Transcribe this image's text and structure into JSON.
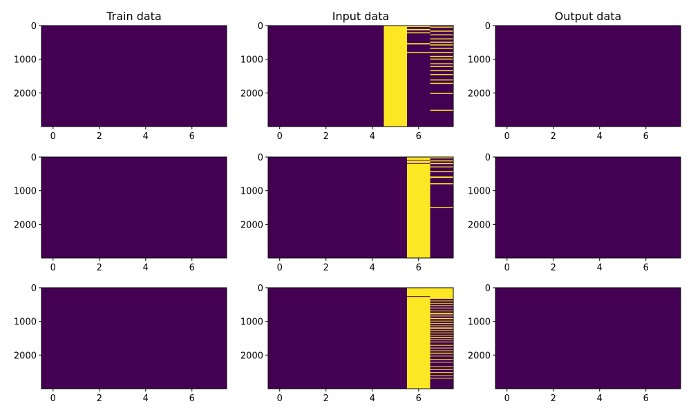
{
  "colors": {
    "background": "#ffffff",
    "low": "#440154",
    "high": "#fde725",
    "axis": "#000000"
  },
  "chart_data": [
    {
      "type": "heatmap",
      "title": "Train data",
      "xlim": [
        -0.5,
        7.5
      ],
      "ylim": [
        3000,
        0
      ],
      "xticks": [
        0,
        2,
        4,
        6
      ],
      "yticks": [
        0,
        1000,
        2000
      ],
      "columns": 8,
      "rows": 3000,
      "full_columns": [],
      "stripes": []
    },
    {
      "type": "heatmap",
      "title": "Input data",
      "xlim": [
        -0.5,
        7.5
      ],
      "ylim": [
        3000,
        0
      ],
      "xticks": [
        0,
        2,
        4,
        6
      ],
      "yticks": [
        0,
        1000,
        2000
      ],
      "columns": 8,
      "rows": 3000,
      "full_columns": [
        5
      ],
      "stripes": [
        {
          "col": 6,
          "row_ranges": [
            [
              0,
              40
            ],
            [
              100,
              140
            ],
            [
              200,
              230
            ],
            [
              520,
              560
            ],
            [
              780,
              810
            ]
          ]
        },
        {
          "col": 7,
          "row_ranges": [
            [
              30,
              60
            ],
            [
              150,
              180
            ],
            [
              260,
              290
            ],
            [
              380,
              410
            ],
            [
              480,
              510
            ],
            [
              560,
              590
            ],
            [
              660,
              690
            ],
            [
              780,
              810
            ],
            [
              900,
              930
            ],
            [
              980,
              1010
            ],
            [
              1120,
              1150
            ],
            [
              1200,
              1230
            ],
            [
              1320,
              1350
            ],
            [
              1440,
              1470
            ],
            [
              1600,
              1630
            ],
            [
              1700,
              1730
            ],
            [
              2000,
              2030
            ],
            [
              2500,
              2530
            ]
          ]
        }
      ]
    },
    {
      "type": "heatmap",
      "title": "Output data",
      "xlim": [
        -0.5,
        7.5
      ],
      "ylim": [
        3000,
        0
      ],
      "xticks": [
        0,
        2,
        4,
        6
      ],
      "yticks": [
        0,
        1000,
        2000
      ],
      "columns": 8,
      "rows": 3000,
      "full_columns": [],
      "stripes": []
    },
    {
      "type": "heatmap",
      "title": "",
      "xlim": [
        -0.5,
        7.5
      ],
      "ylim": [
        3000,
        0
      ],
      "xticks": [
        0,
        2,
        4,
        6
      ],
      "yticks": [
        0,
        1000,
        2000
      ],
      "columns": 8,
      "rows": 3000,
      "full_columns": [],
      "stripes": []
    },
    {
      "type": "heatmap",
      "title": "",
      "xlim": [
        -0.5,
        7.5
      ],
      "ylim": [
        3000,
        0
      ],
      "xticks": [
        0,
        2,
        4,
        6
      ],
      "yticks": [
        0,
        1000,
        2000
      ],
      "columns": 8,
      "rows": 3000,
      "full_columns": [
        6
      ],
      "gaps": [
        {
          "col": 6,
          "row_ranges": [
            [
              90,
              110
            ],
            [
              180,
              200
            ]
          ]
        }
      ],
      "stripes": [
        {
          "col": 7,
          "row_ranges": [
            [
              0,
              40
            ],
            [
              100,
              130
            ],
            [
              180,
              210
            ],
            [
              280,
              310
            ],
            [
              420,
              450
            ],
            [
              580,
              620
            ],
            [
              780,
              810
            ],
            [
              1480,
              1510
            ]
          ]
        }
      ]
    },
    {
      "type": "heatmap",
      "title": "",
      "xlim": [
        -0.5,
        7.5
      ],
      "ylim": [
        3000,
        0
      ],
      "xticks": [
        0,
        2,
        4,
        6
      ],
      "yticks": [
        0,
        1000,
        2000
      ],
      "columns": 8,
      "rows": 3000,
      "full_columns": [],
      "stripes": []
    },
    {
      "type": "heatmap",
      "title": "",
      "xlim": [
        -0.5,
        7.5
      ],
      "ylim": [
        3000,
        0
      ],
      "xticks": [
        0,
        2,
        4,
        6
      ],
      "yticks": [
        0,
        1000,
        2000
      ],
      "columns": 8,
      "rows": 3000,
      "full_columns": [],
      "stripes": []
    },
    {
      "type": "heatmap",
      "title": "",
      "xlim": [
        -0.5,
        7.5
      ],
      "ylim": [
        3000,
        0
      ],
      "xticks": [
        0,
        2,
        4,
        6
      ],
      "yticks": [
        0,
        1000,
        2000
      ],
      "columns": 8,
      "rows": 3000,
      "full_columns": [
        6
      ],
      "gaps": [
        {
          "col": 6,
          "row_ranges": [
            [
              250,
              270
            ]
          ]
        }
      ],
      "stripes": [
        {
          "col": 7,
          "row_ranges": [
            [
              0,
              330
            ],
            [
              380,
              400
            ],
            [
              450,
              470
            ],
            [
              520,
              540
            ],
            [
              590,
              610
            ],
            [
              680,
              700
            ],
            [
              750,
              790
            ],
            [
              830,
              850
            ],
            [
              900,
              930
            ],
            [
              980,
              1000
            ],
            [
              1050,
              1070
            ],
            [
              1120,
              1140
            ],
            [
              1180,
              1220
            ],
            [
              1260,
              1280
            ],
            [
              1330,
              1350
            ],
            [
              1400,
              1420
            ],
            [
              1460,
              1490
            ],
            [
              1530,
              1550
            ],
            [
              1600,
              1620
            ],
            [
              1700,
              1720
            ],
            [
              1780,
              1800
            ],
            [
              1860,
              1880
            ],
            [
              1930,
              1960
            ],
            [
              2020,
              2040
            ],
            [
              2120,
              2140
            ],
            [
              2200,
              2220
            ],
            [
              2330,
              2350
            ],
            [
              2420,
              2440
            ],
            [
              2510,
              2530
            ],
            [
              2600,
              2620
            ],
            [
              2680,
              2700
            ]
          ]
        }
      ]
    },
    {
      "type": "heatmap",
      "title": "",
      "xlim": [
        -0.5,
        7.5
      ],
      "ylim": [
        3000,
        0
      ],
      "xticks": [
        0,
        2,
        4,
        6
      ],
      "yticks": [
        0,
        1000,
        2000
      ],
      "columns": 8,
      "rows": 3000,
      "full_columns": [],
      "stripes": []
    }
  ]
}
